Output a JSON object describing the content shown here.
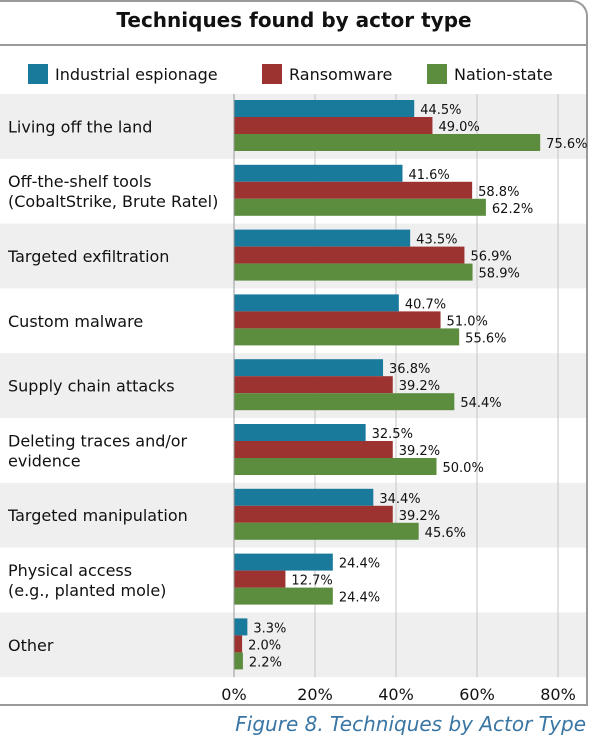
{
  "chart_data": {
    "type": "bar",
    "orientation": "horizontal",
    "title": "Techniques found by actor type",
    "categories": [
      [
        "Living off the land"
      ],
      [
        "Off-the-shelf tools",
        "(CobaltStrike, Brute Ratel)"
      ],
      [
        "Targeted exfiltration"
      ],
      [
        "Custom malware"
      ],
      [
        "Supply chain attacks"
      ],
      [
        "Deleting traces and/or",
        "evidence"
      ],
      [
        "Targeted manipulation"
      ],
      [
        "Physical access",
        "(e.g., planted mole)"
      ],
      [
        "Other"
      ]
    ],
    "series": [
      {
        "name": "Industrial espionage",
        "color": "#1a7a9c",
        "values": [
          44.5,
          41.6,
          43.5,
          40.7,
          36.8,
          32.5,
          34.4,
          24.4,
          3.3
        ]
      },
      {
        "name": "Ransomware",
        "color": "#9c3331",
        "values": [
          49.0,
          58.8,
          56.9,
          51.0,
          39.2,
          39.2,
          39.2,
          12.7,
          2.0
        ]
      },
      {
        "name": "Nation-state",
        "color": "#5c8c3e",
        "values": [
          75.6,
          62.2,
          58.9,
          55.6,
          54.4,
          50.0,
          45.6,
          24.4,
          2.2
        ]
      }
    ],
    "xlim": [
      0,
      80
    ],
    "xticks": [
      0,
      20,
      40,
      60,
      80
    ],
    "tick_suffix": "%",
    "value_suffix": "%",
    "grid": true,
    "legend": "top"
  },
  "caption": "Figure 8. Techniques by Actor Type"
}
